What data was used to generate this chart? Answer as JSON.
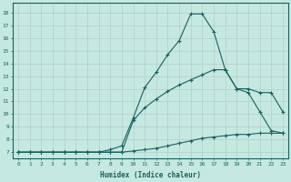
{
  "xlabel": "Humidex (Indice chaleur)",
  "ylabel": "",
  "background_color": "#c5e8e0",
  "grid_color": "#b0d0c8",
  "line_color": "#1a6060",
  "xlim": [
    -0.5,
    23.5
  ],
  "ylim": [
    6.5,
    18.8
  ],
  "xticks": [
    0,
    1,
    2,
    3,
    4,
    5,
    6,
    7,
    8,
    9,
    10,
    11,
    12,
    13,
    14,
    15,
    16,
    17,
    18,
    19,
    20,
    21,
    22,
    23
  ],
  "yticks": [
    7,
    8,
    9,
    10,
    11,
    12,
    13,
    14,
    15,
    16,
    17,
    18
  ],
  "line1_x": [
    0,
    1,
    2,
    3,
    4,
    5,
    6,
    7,
    8,
    9,
    10,
    11,
    12,
    13,
    14,
    15,
    16,
    17,
    18,
    19,
    20,
    21,
    22,
    23
  ],
  "line1_y": [
    7.0,
    7.0,
    7.0,
    7.0,
    7.0,
    7.0,
    7.0,
    7.0,
    7.0,
    7.0,
    7.1,
    7.2,
    7.3,
    7.5,
    7.7,
    7.9,
    8.1,
    8.2,
    8.3,
    8.4,
    8.4,
    8.5,
    8.5,
    8.5
  ],
  "line2_x": [
    0,
    1,
    2,
    3,
    4,
    5,
    6,
    7,
    8,
    9,
    10,
    11,
    12,
    13,
    14,
    15,
    16,
    17,
    18,
    19,
    20,
    21,
    22,
    23
  ],
  "line2_y": [
    7.0,
    7.0,
    7.0,
    7.0,
    7.0,
    7.0,
    7.0,
    7.0,
    7.0,
    7.0,
    9.5,
    10.5,
    11.2,
    11.8,
    12.3,
    12.7,
    13.1,
    13.5,
    13.5,
    12.0,
    12.0,
    11.7,
    11.7,
    10.2
  ],
  "line3_x": [
    0,
    1,
    2,
    3,
    4,
    5,
    6,
    7,
    8,
    9,
    10,
    11,
    12,
    13,
    14,
    15,
    16,
    17,
    18,
    19,
    20,
    21,
    22,
    23
  ],
  "line3_y": [
    7.0,
    7.0,
    7.0,
    7.0,
    7.0,
    7.0,
    7.0,
    7.0,
    7.2,
    7.5,
    9.7,
    12.1,
    13.3,
    14.7,
    15.8,
    17.9,
    17.9,
    16.5,
    13.5,
    12.0,
    11.7,
    10.2,
    8.7,
    8.5
  ]
}
